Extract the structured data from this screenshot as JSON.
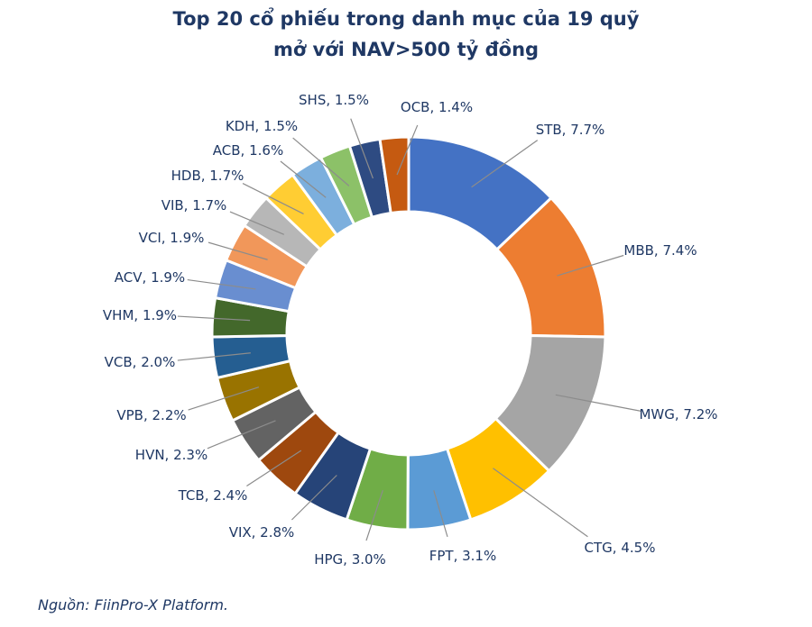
{
  "title_line1": "Top 20 cổ phiếu trong danh mục của 19 quỹ",
  "title_line2": "mở với NAV>500 tỷ đồng",
  "source": "Nguồn: FiinPro-X Platform.",
  "chart_data": {
    "type": "pie",
    "variant": "donut",
    "title": "Top 20 cổ phiếu trong danh mục của 19 quỹ mở với NAV>500 tỷ đồng",
    "categories": [
      "STB",
      "MBB",
      "MWG",
      "CTG",
      "FPT",
      "HPG",
      "VIX",
      "TCB",
      "HVN",
      "VPB",
      "VCB",
      "VHM",
      "ACV",
      "VCI",
      "VIB",
      "HDB",
      "ACB",
      "KDH",
      "SHS",
      "OCB"
    ],
    "values": [
      7.7,
      7.4,
      7.2,
      4.5,
      3.1,
      3.0,
      2.8,
      2.4,
      2.3,
      2.2,
      2.0,
      1.9,
      1.9,
      1.9,
      1.7,
      1.7,
      1.6,
      1.5,
      1.5,
      1.4
    ],
    "labels": [
      "STB, 7.7%",
      "MBB, 7.4%",
      "MWG, 7.2%",
      "CTG, 4.5%",
      "FPT, 3.1%",
      "HPG, 3.0%",
      "VIX, 2.8%",
      "TCB, 2.4%",
      "HVN, 2.3%",
      "VPB, 2.2%",
      "VCB, 2.0%",
      "VHM, 1.9%",
      "ACV, 1.9%",
      "VCI, 1.9%",
      "VIB, 1.7%",
      "HDB, 1.7%",
      "ACB, 1.6%",
      "KDH, 1.5%",
      "SHS, 1.5%",
      "OCB, 1.4%"
    ],
    "colors": [
      "#4472c4",
      "#ed7d31",
      "#a5a5a5",
      "#ffc000",
      "#5b9bd5",
      "#70ad47",
      "#264478",
      "#9e480e",
      "#636363",
      "#997300",
      "#255e91",
      "#43682b",
      "#698ed0",
      "#f1975a",
      "#b7b7b7",
      "#ffcd33",
      "#7cafdd",
      "#8cc168",
      "#2e4b82",
      "#c55a11"
    ],
    "units": "%",
    "legend": "none"
  }
}
